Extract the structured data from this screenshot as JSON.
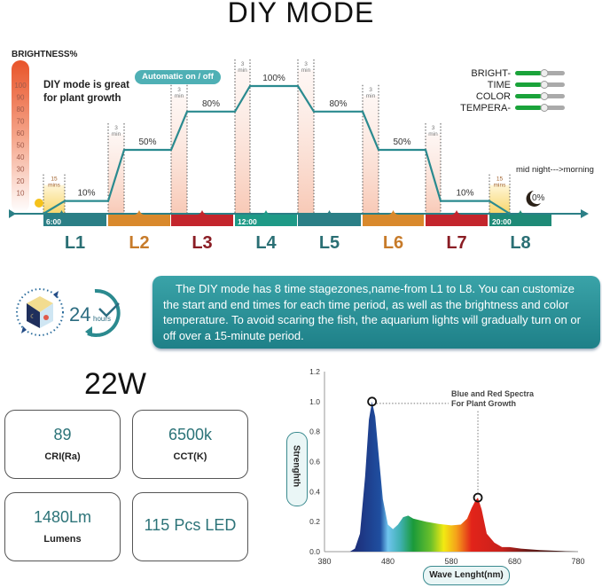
{
  "title": "DIY MODE",
  "brightness_scale": {
    "title": "BRIGHTNESS%",
    "ticks": [
      "100",
      "90",
      "80",
      "70",
      "60",
      "50",
      "40",
      "30",
      "20",
      "10"
    ]
  },
  "diy_note": [
    "DIY mode is great",
    "for plant growth"
  ],
  "auto_pill": "Automatic on / off",
  "legend": [
    "BRIGHT-",
    "TIME",
    "COLOR",
    "TEMPERA-"
  ],
  "levels": [
    {
      "label": "L1",
      "percent": "10%",
      "ramp": [
        "15",
        "mins"
      ],
      "time": "6:00",
      "color": "#2b7f86"
    },
    {
      "label": "L2",
      "percent": "50%",
      "ramp": [
        "3",
        "min"
      ],
      "time": "",
      "color": "#d9892c"
    },
    {
      "label": "L3",
      "percent": "80%",
      "ramp": [
        "3",
        "min"
      ],
      "time": "",
      "color": "#c3252c"
    },
    {
      "label": "L4",
      "percent": "100%",
      "ramp": [
        "3",
        "min"
      ],
      "time": "12:00",
      "color": "#1e9a87"
    },
    {
      "label": "L5",
      "percent": "80%",
      "ramp": [
        "3",
        "min"
      ],
      "time": "",
      "color": "#2b7f86"
    },
    {
      "label": "L6",
      "percent": "50%",
      "ramp": [
        "3",
        "min"
      ],
      "time": "",
      "color": "#d9892c"
    },
    {
      "label": "L7",
      "percent": "10%",
      "ramp": [
        "3",
        "min"
      ],
      "time": "",
      "color": "#c3252c"
    },
    {
      "label": "L8",
      "percent": "0%",
      "ramp": [
        "15",
        "mins"
      ],
      "time": "20:00",
      "color": "#1e8a77"
    }
  ],
  "label_colors": [
    "#2a6f74",
    "#c77b2a",
    "#8a1d24",
    "#2a6f74",
    "#2a6f74",
    "#c77b2a",
    "#8a1d24",
    "#2a6f74"
  ],
  "midnight_note": "mid night--->morning",
  "icon_24h": {
    "number": "24",
    "unit": "hours"
  },
  "description": "The DIY mode has 8 time stagezones,name-from L1 to L8. You can customize the start and end times for each time period, as well as the brightness and color temperature. To avoid scaring the fish, the aquarium lights will gradually turn on or off over a 15-minute period.",
  "power": "22W",
  "specs": [
    {
      "value": "89",
      "label": "CRI(Ra)"
    },
    {
      "value": "6500k",
      "label": "CCT(K)"
    },
    {
      "value": "1480Lm",
      "label": "Lumens"
    },
    {
      "value": "115 Pcs LED",
      "label": ""
    }
  ],
  "chart_data": {
    "type": "area",
    "xlabel": "Wave Lenght(nm)",
    "ylabel": "Strenghth",
    "xlim": [
      380,
      780
    ],
    "ylim": [
      0,
      1.2
    ],
    "xticks": [
      "380",
      "480",
      "580",
      "680",
      "780"
    ],
    "yticks": [
      "0.0",
      "0.2",
      "0.4",
      "0.6",
      "0.8",
      "1.0",
      "1.2"
    ],
    "annotation": [
      "Blue and Red Spectra",
      "For Plant Growth"
    ],
    "highlight_peaks": [
      [
        455,
        1.0
      ],
      [
        622,
        0.36
      ]
    ],
    "x": [
      380,
      420,
      428,
      436,
      444,
      450,
      455,
      460,
      466,
      472,
      480,
      488,
      496,
      504,
      512,
      520,
      540,
      560,
      580,
      595,
      605,
      612,
      618,
      622,
      628,
      636,
      648,
      660,
      672,
      690,
      720,
      780
    ],
    "y": [
      0,
      0,
      0.02,
      0.12,
      0.5,
      0.88,
      1.0,
      0.9,
      0.62,
      0.35,
      0.18,
      0.15,
      0.18,
      0.23,
      0.24,
      0.22,
      0.2,
      0.185,
      0.175,
      0.18,
      0.22,
      0.29,
      0.34,
      0.36,
      0.28,
      0.12,
      0.06,
      0.03,
      0.03,
      0.02,
      0.01,
      0
    ]
  }
}
